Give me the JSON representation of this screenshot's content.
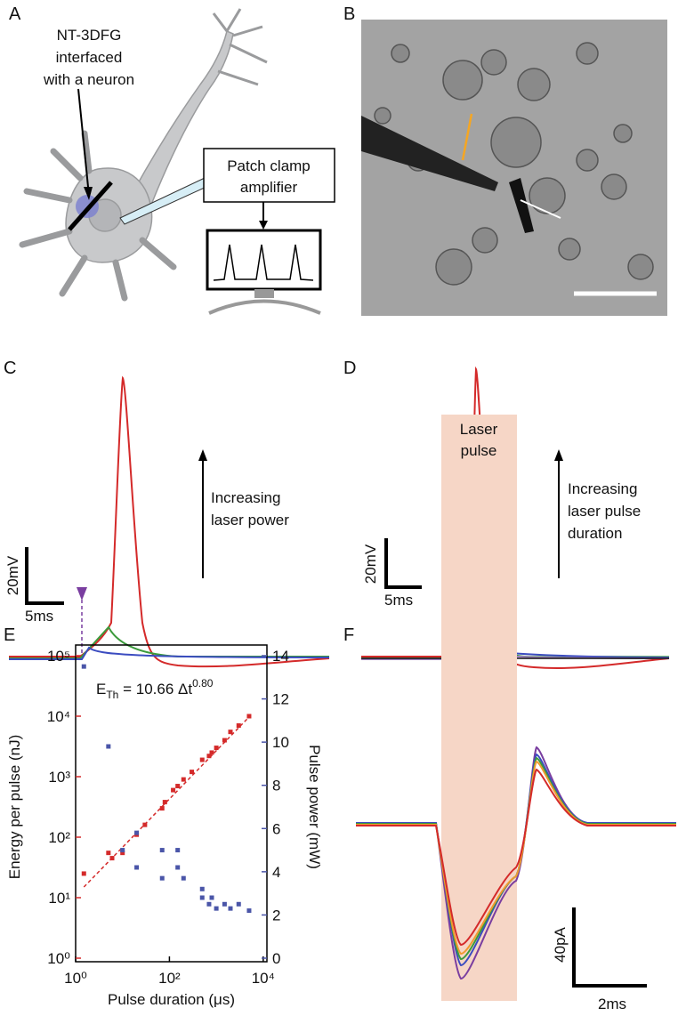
{
  "panels": {
    "A": {
      "letter": "A",
      "annotation": [
        "NT-3DFG",
        "interfaced",
        "with a neuron"
      ],
      "box": [
        "Patch clamp",
        "amplifier"
      ]
    },
    "B": {
      "letter": "B"
    },
    "C": {
      "letter": "C",
      "scale_y": "20mV",
      "scale_x": "5ms",
      "arrow_text": [
        "Increasing",
        "laser power"
      ]
    },
    "D": {
      "letter": "D",
      "scale_y": "20mV",
      "scale_x": "5ms",
      "arrow_text": [
        "Increasing",
        "laser pulse",
        "duration"
      ]
    },
    "E": {
      "letter": "E"
    },
    "F": {
      "letter": "F",
      "shade_text": [
        "Laser",
        "pulse"
      ],
      "scale_y": "40pA",
      "scale_x": "2ms"
    }
  },
  "chart_data": {
    "type": "scatter",
    "xlabel": "Pulse duration (μs)",
    "ylabel": "Energy per pulse (nJ)",
    "y2label": "Pulse power (mW)",
    "annotation": {
      "text": "E",
      "subscript": "Th",
      "rest": " = 10.66 Δt",
      "superscript": "0.80"
    },
    "xscale": "log",
    "yscale": "log",
    "xlim": [
      1,
      12000
    ],
    "ylim": [
      1,
      100000
    ],
    "y2lim": [
      0,
      14
    ],
    "xticks": [
      {
        "value": 1,
        "label": "10⁰"
      },
      {
        "value": 100,
        "label": "10²"
      },
      {
        "value": 10000,
        "label": "10⁴"
      }
    ],
    "yticks": [
      {
        "value": 1,
        "label": "10⁰"
      },
      {
        "value": 10,
        "label": "10¹"
      },
      {
        "value": 100,
        "label": "10²"
      },
      {
        "value": 1000,
        "label": "10³"
      },
      {
        "value": 10000,
        "label": "10⁴"
      },
      {
        "value": 100000,
        "label": "10⁵"
      }
    ],
    "y2ticks": [
      0,
      2,
      4,
      6,
      8,
      10,
      12,
      14
    ],
    "ycolor": "#d42a2a",
    "y2color": "#4a55a8",
    "fit": {
      "color": "#d42a2a",
      "x": [
        1.5,
        5000
      ],
      "values": [
        15,
        9700
      ]
    },
    "series": [
      {
        "color": "#d42a2a",
        "x": [
          1.5,
          5,
          6,
          10,
          20,
          30,
          70,
          80,
          120,
          150,
          200,
          300,
          500,
          700,
          800,
          1000,
          1500,
          2000,
          3000,
          5000
        ],
        "values": [
          25,
          55,
          45,
          55,
          110,
          160,
          300,
          380,
          600,
          700,
          900,
          1200,
          1900,
          2200,
          2500,
          3000,
          4000,
          5500,
          7000,
          10000
        ]
      },
      {
        "color": "#4a55a8",
        "axis": "y2",
        "x": [
          1.5,
          5,
          10,
          20,
          20,
          70,
          70,
          150,
          150,
          200,
          500,
          500,
          700,
          800,
          1000,
          1500,
          2000,
          3000,
          5000
        ],
        "values": [
          13.5,
          9.8,
          5,
          5.8,
          4.2,
          5,
          3.7,
          4.2,
          5,
          3.7,
          3.2,
          2.8,
          2.5,
          2.8,
          2.3,
          2.5,
          2.3,
          2.5,
          2.2
        ]
      }
    ]
  }
}
